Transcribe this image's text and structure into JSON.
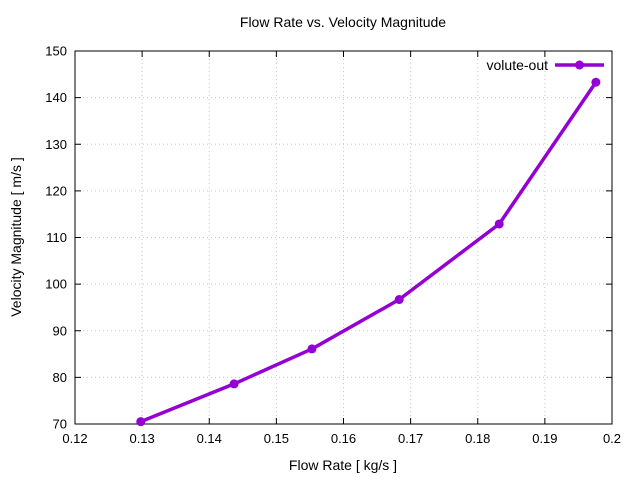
{
  "figure": {
    "background": "#ffffff",
    "frame_color": "#000000"
  },
  "chart_data": {
    "type": "line",
    "title": "Flow Rate vs. Velocity Magnitude",
    "xlabel": "Flow Rate [ kg/s ]",
    "ylabel": "Velocity Magnitude [ m/s ]",
    "xlim": [
      0.12,
      0.2
    ],
    "ylim": [
      70,
      150
    ],
    "x_ticks": [
      0.12,
      0.13,
      0.14,
      0.15,
      0.16,
      0.17,
      0.18,
      0.19,
      0.2
    ],
    "x_tick_labels": [
      "0.12",
      "0.13",
      "0.14",
      "0.15",
      "0.16",
      "0.17",
      "0.18",
      "0.19",
      "0.2"
    ],
    "y_ticks": [
      70,
      80,
      90,
      100,
      110,
      120,
      130,
      140,
      150
    ],
    "y_tick_labels": [
      "70",
      "80",
      "90",
      "100",
      "110",
      "120",
      "130",
      "140",
      "150"
    ],
    "grid": true,
    "grid_style": "dotted",
    "grid_color": "#c8c8c8",
    "axis_color": "#000000",
    "legend_position": "top-right-inside",
    "series": [
      {
        "name": "volute-out",
        "color": "#9400d3",
        "marker": "circle",
        "line_width": 3.5,
        "marker_radius": 4.5,
        "x": [
          0.1298,
          0.1437,
          0.1553,
          0.1683,
          0.1832,
          0.1976
        ],
        "y": [
          70.5,
          78.6,
          86.1,
          96.7,
          112.9,
          143.3
        ]
      }
    ]
  }
}
